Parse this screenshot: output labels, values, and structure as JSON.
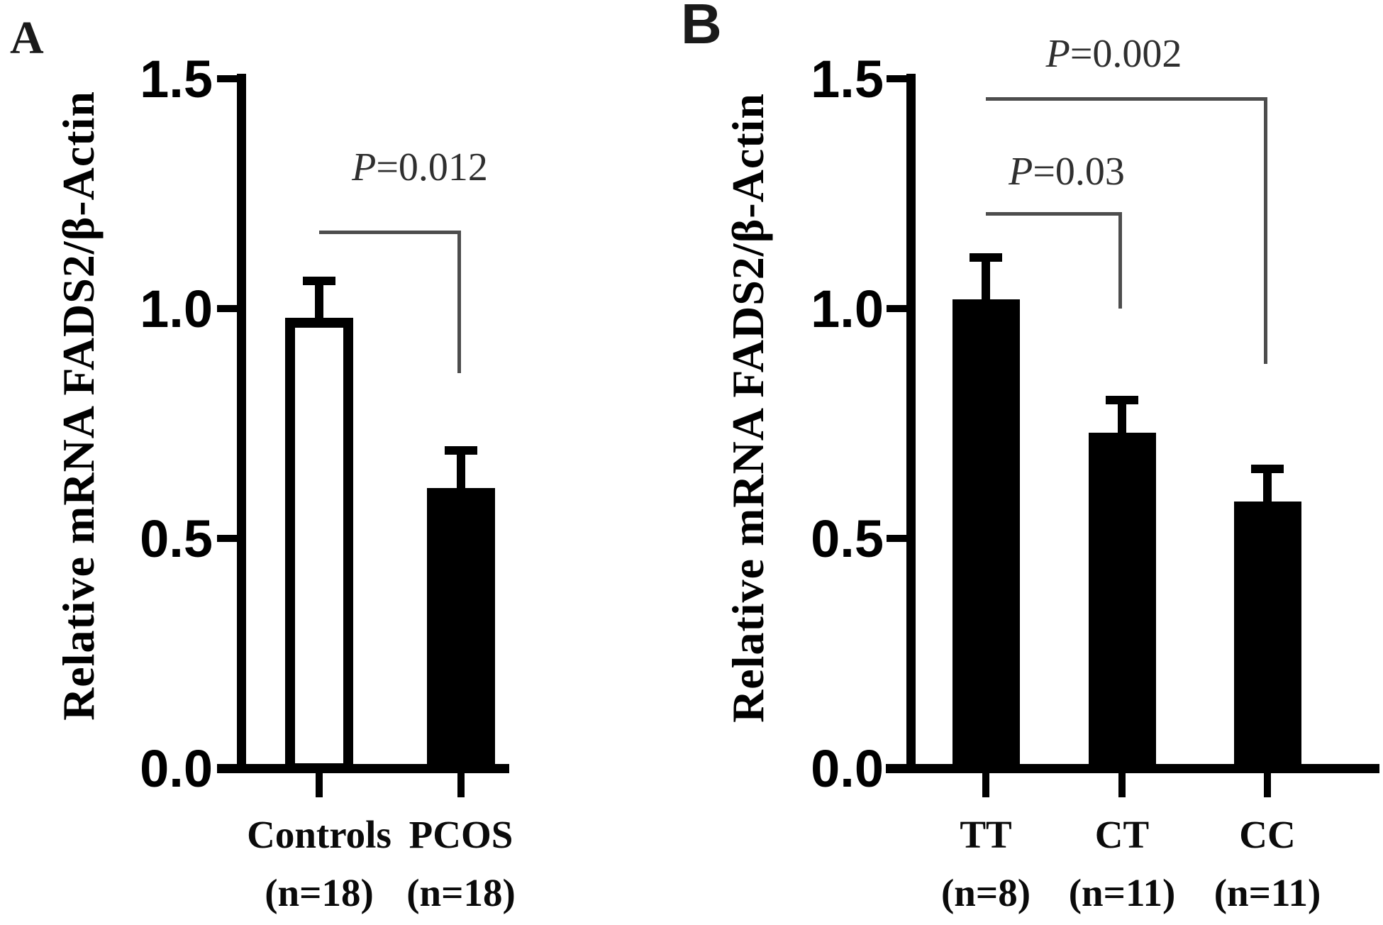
{
  "figure": {
    "panel_a_letter": "A",
    "panel_b_letter": "B"
  },
  "chart_data": [
    {
      "type": "bar",
      "panel": "A",
      "ylabel": "Relative mRNA FADS2/β-Actin",
      "ylim": [
        0,
        1.5
      ],
      "yticks": [
        "0.0",
        "0.5",
        "1.0",
        "1.5"
      ],
      "grid": false,
      "categories": [
        [
          "Controls",
          "(n=18)"
        ],
        [
          "PCOS",
          "(n=18)"
        ]
      ],
      "values": [
        0.98,
        0.61
      ],
      "errors_plus": [
        0.09,
        0.09
      ],
      "bar_fill": [
        "open",
        "solid"
      ],
      "significance": [
        {
          "label": "P=0.012",
          "from": 0,
          "to": 1,
          "line_value": 1.17,
          "drop_value": 0.86
        }
      ]
    },
    {
      "type": "bar",
      "panel": "B",
      "ylabel": "Relative mRNA FADS2/β-Actin",
      "ylim": [
        0,
        1.5
      ],
      "yticks": [
        "0.0",
        "0.5",
        "1.0",
        "1.5"
      ],
      "grid": false,
      "categories": [
        [
          "TT",
          "(n=8)"
        ],
        [
          "CT",
          "(n=11)"
        ],
        [
          "CC",
          "(n=11)"
        ]
      ],
      "values": [
        1.02,
        0.73,
        0.58
      ],
      "errors_plus": [
        0.1,
        0.08,
        0.08
      ],
      "bar_fill": [
        "solid",
        "solid",
        "solid"
      ],
      "significance": [
        {
          "label": "P=0.03",
          "from": 0,
          "to": 1,
          "line_value": 1.21,
          "drop_value": 1.0
        },
        {
          "label": "P=0.002",
          "from": 0,
          "to": 2,
          "line_value": 1.46,
          "drop_value": 0.88
        }
      ]
    }
  ]
}
